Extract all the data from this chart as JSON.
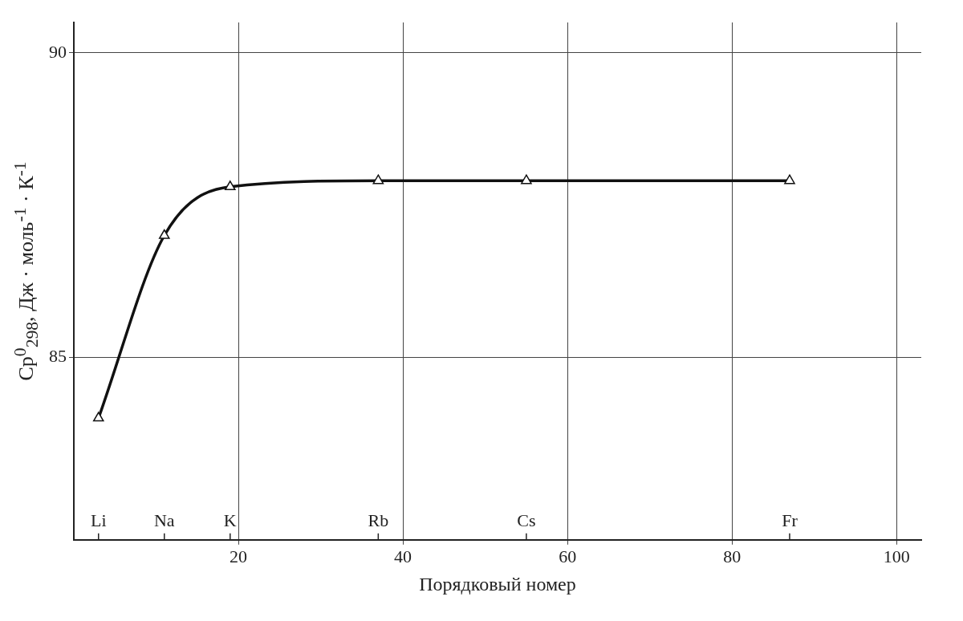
{
  "chart_data": {
    "type": "line",
    "xlabel": "Порядковый номер",
    "ylabel": "Cp$^{0}$$_{298}$, Дж · моль$^{-1}$ · К$^{-1}$",
    "x": [
      3,
      11,
      19,
      37,
      55,
      87
    ],
    "series": [
      {
        "color": "#111111",
        "values": [
          84.0,
          87.0,
          87.8,
          87.9,
          87.9,
          87.9
        ]
      }
    ],
    "xlim": [
      0,
      103
    ],
    "xticks": [
      20,
      40,
      60,
      80,
      100
    ],
    "ylim": [
      82,
      90.5
    ],
    "yticks": [
      85,
      90
    ],
    "grid": true,
    "marker": "triangle",
    "line_style": "solid",
    "annotations": [
      "Li",
      "Na",
      "K",
      "Rb",
      "Cs",
      "Fr"
    ]
  }
}
